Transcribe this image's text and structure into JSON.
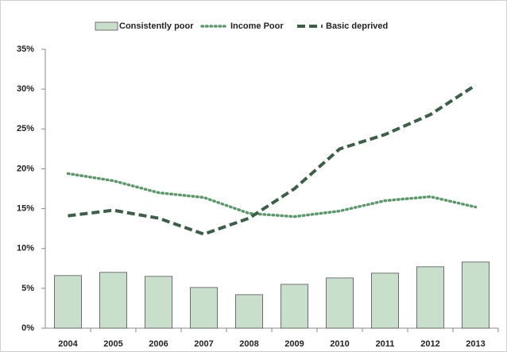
{
  "chart_data": {
    "type": "combo",
    "categories": [
      "2004",
      "2005",
      "2006",
      "2007",
      "2008",
      "2009",
      "2010",
      "2011",
      "2012",
      "2013"
    ],
    "series": [
      {
        "name": "Consistently poor",
        "type": "bar",
        "color": "#c8dfcc",
        "values": [
          6.6,
          7.0,
          6.5,
          5.1,
          4.2,
          5.5,
          6.3,
          6.9,
          7.7,
          8.3
        ]
      },
      {
        "name": "Income Poor",
        "type": "line",
        "dash": "dotted",
        "color": "#5a9a6a",
        "values": [
          19.4,
          18.5,
          17.0,
          16.4,
          14.4,
          14.0,
          14.7,
          16.0,
          16.5,
          15.2
        ]
      },
      {
        "name": "Basic deprived",
        "type": "line",
        "dash": "dashed",
        "color": "#3b5f47",
        "values": [
          14.1,
          14.8,
          13.8,
          11.8,
          13.8,
          17.5,
          22.5,
          24.3,
          26.8,
          30.5
        ]
      }
    ],
    "ylim": [
      0,
      35
    ],
    "yticks": [
      {
        "value": 0,
        "label": "0%"
      },
      {
        "value": 5,
        "label": "5%"
      },
      {
        "value": 10,
        "label": "10%"
      },
      {
        "value": 15,
        "label": "15%"
      },
      {
        "value": 20,
        "label": "20%"
      },
      {
        "value": 25,
        "label": "25%"
      },
      {
        "value": 30,
        "label": "30%"
      },
      {
        "value": 35,
        "label": "35%"
      }
    ],
    "grid": false
  }
}
